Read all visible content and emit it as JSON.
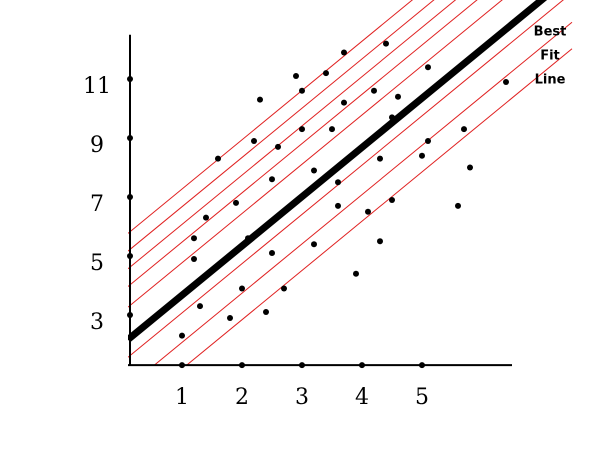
{
  "chart_data": {
    "type": "scatter",
    "annotation": [
      "Best",
      "Fit",
      "Line"
    ],
    "x": [
      3.7,
      4.4,
      2.9,
      3.4,
      3.0,
      2.3,
      4.2,
      5.1,
      3.7,
      4.6,
      4.5,
      6.4,
      3.0,
      3.5,
      2.2,
      2.6,
      1.6,
      5.7,
      5.1,
      5.0,
      4.3,
      5.8,
      3.2,
      2.5,
      3.6,
      1.9,
      1.4,
      1.2,
      2.1,
      3.6,
      4.1,
      4.5,
      5.6,
      4.3,
      3.2,
      1.2,
      2.5,
      3.9,
      2.0,
      2.7,
      1.3,
      2.4,
      1.8,
      1.0
    ],
    "values": [
      11.9,
      12.2,
      11.1,
      11.2,
      10.6,
      10.3,
      10.6,
      11.4,
      10.2,
      10.4,
      9.7,
      10.9,
      9.3,
      9.3,
      8.9,
      8.7,
      8.3,
      9.3,
      8.9,
      8.4,
      8.3,
      8.0,
      7.9,
      7.6,
      7.5,
      6.8,
      6.3,
      5.6,
      5.6,
      6.7,
      6.5,
      6.9,
      6.7,
      5.5,
      5.4,
      4.9,
      5.1,
      4.4,
      3.9,
      3.9,
      3.3,
      3.1,
      2.9,
      2.3
    ],
    "color": "#000000",
    "fit": {
      "slope": 1.67,
      "intercept": 2.0,
      "color": "#000000"
    },
    "guide_intercepts": [
      5.6,
      5.0,
      4.4,
      3.8,
      3.1,
      1.4,
      0.4,
      -0.5
    ],
    "guide_color": "#e02020",
    "xlim": [
      0.1,
      6.5
    ],
    "ylim": [
      1.3,
      12.5
    ],
    "xticks": [
      1,
      2,
      3,
      4,
      5
    ],
    "yticks": [
      3,
      5,
      7,
      9,
      11
    ]
  }
}
